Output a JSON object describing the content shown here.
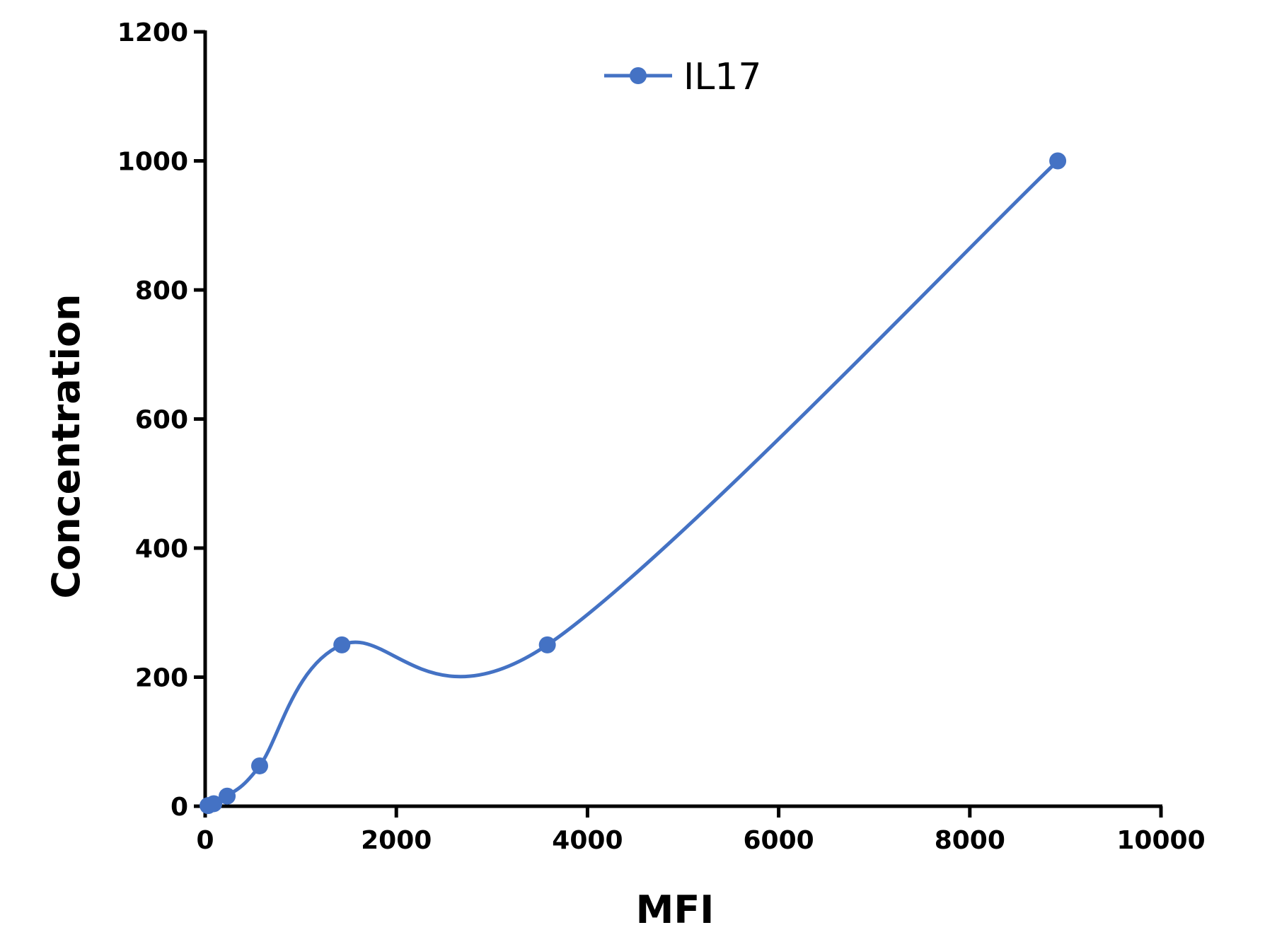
{
  "chart_data": {
    "type": "line",
    "xlabel": "MFI",
    "ylabel": "Concentration",
    "xlim": [
      0,
      10000
    ],
    "ylim": [
      0,
      1200
    ],
    "x_ticks": [
      0,
      2000,
      4000,
      6000,
      8000,
      10000
    ],
    "y_ticks": [
      0,
      200,
      400,
      600,
      800,
      1000,
      1200
    ],
    "x_tick_labels": [
      "0",
      "2000",
      "4000",
      "6000",
      "8000",
      "10000"
    ],
    "y_tick_labels": [
      "0",
      "200",
      "400",
      "600",
      "800",
      "1000",
      "1200"
    ],
    "grid": false,
    "legend_position": "top-center",
    "series": [
      {
        "name": "IL17",
        "color": "#4472C4",
        "smooth": true,
        "marker": "circle",
        "x": [
          30,
          90,
          230,
          570,
          1430,
          3580,
          8920
        ],
        "y": [
          0.98,
          3.9,
          15.6,
          62.5,
          250,
          250,
          1000
        ]
      }
    ]
  }
}
